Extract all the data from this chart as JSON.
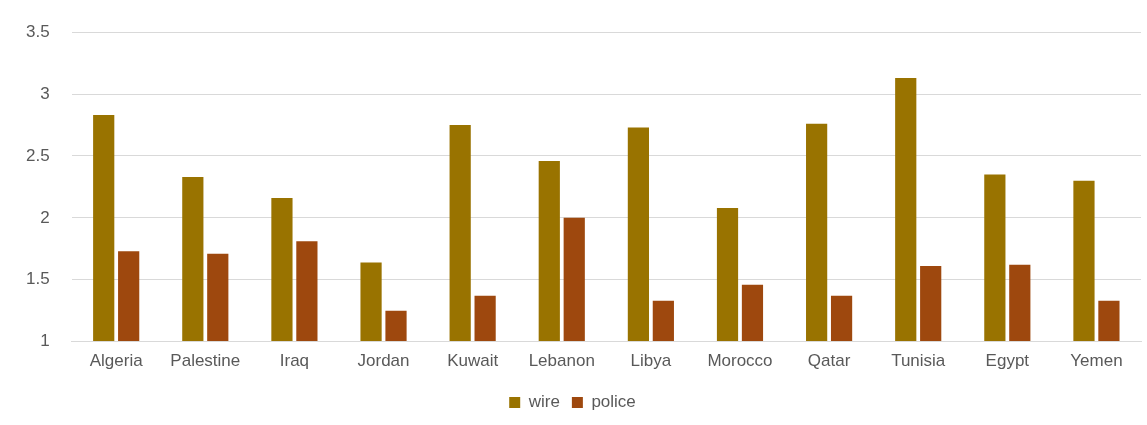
{
  "chart_data": {
    "type": "bar",
    "categories": [
      "Algeria",
      "Palestine",
      "Iraq",
      "Jordan",
      "Kuwait",
      "Lebanon",
      "Libya",
      "Morocco",
      "Qatar",
      "Tunisia",
      "Egypt",
      "Yemen"
    ],
    "series": [
      {
        "name": "wire",
        "color": "#997300",
        "values": [
          2.83,
          2.33,
          2.16,
          1.64,
          2.75,
          2.46,
          2.73,
          2.08,
          2.76,
          3.13,
          2.35,
          2.3
        ]
      },
      {
        "name": "police",
        "color": "#9e480e",
        "values": [
          1.73,
          1.71,
          1.81,
          1.25,
          1.37,
          2.0,
          1.33,
          1.46,
          1.37,
          1.61,
          1.62,
          1.33
        ]
      }
    ],
    "ylim": [
      1,
      3.5
    ],
    "yticks": [
      1,
      1.5,
      2,
      2.5,
      3,
      3.5
    ],
    "grid": "y",
    "legend": "bottom"
  }
}
